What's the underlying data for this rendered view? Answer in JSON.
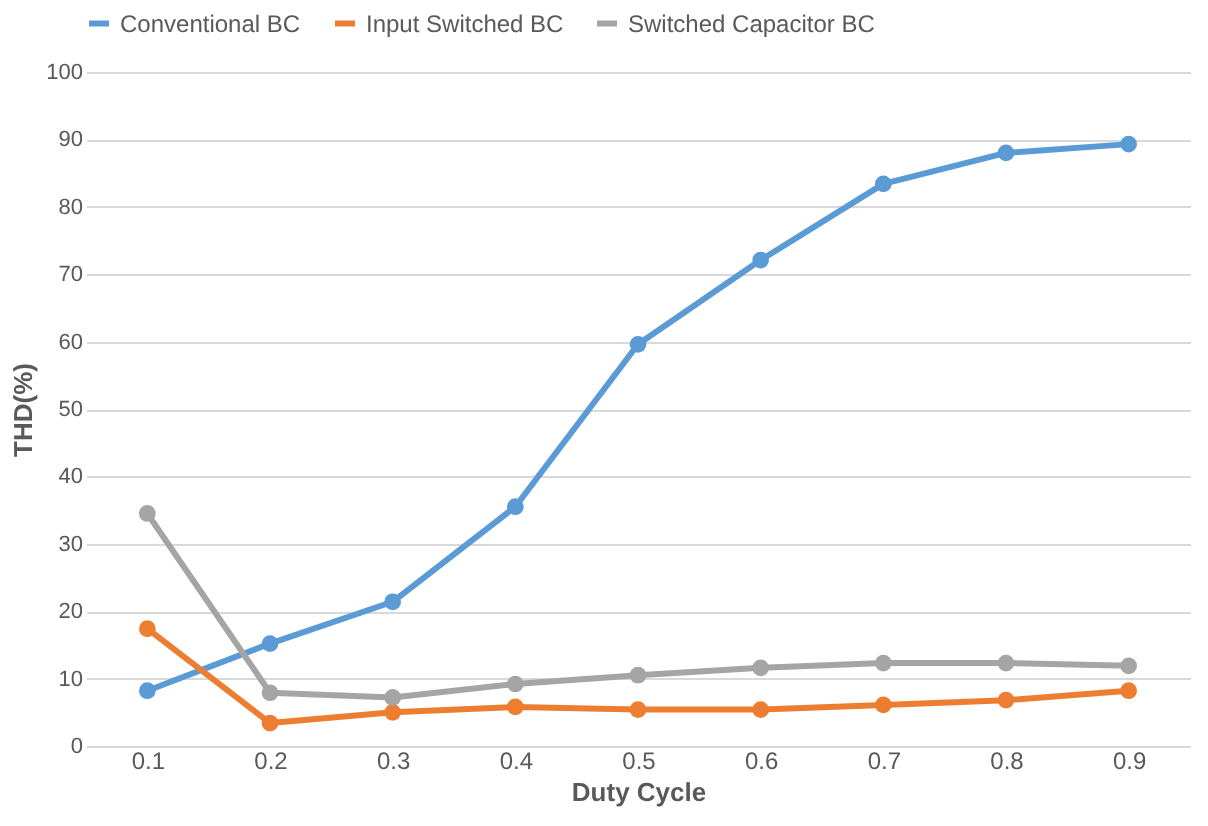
{
  "chart_data": {
    "type": "line",
    "xlabel": "Duty Cycle",
    "ylabel": "THD(%)",
    "categories": [
      "0.1",
      "0.2",
      "0.3",
      "0.4",
      "0.5",
      "0.6",
      "0.7",
      "0.8",
      "0.9"
    ],
    "series": [
      {
        "name": "Conventional BC",
        "color": "#5b9bd5",
        "values": [
          8.2,
          15.2,
          21.4,
          35.5,
          59.6,
          72.1,
          83.4,
          88,
          89.3
        ]
      },
      {
        "name": "Input Switched BC",
        "color": "#ed7d31",
        "values": [
          17.4,
          3.4,
          5,
          5.8,
          5.4,
          5.4,
          6.1,
          6.8,
          8.2
        ]
      },
      {
        "name": "Switched Capacitor BC",
        "color": "#a5a5a5",
        "values": [
          34.5,
          7.9,
          7.2,
          9.2,
          10.5,
          11.6,
          12.3,
          12.3,
          11.9
        ]
      }
    ],
    "ylim": [
      0,
      100
    ],
    "yticks": [
      0,
      10,
      20,
      30,
      40,
      50,
      60,
      70,
      80,
      90,
      100
    ],
    "grid": "y",
    "legend": "top",
    "marker": "circle",
    "line_style": "solid"
  }
}
